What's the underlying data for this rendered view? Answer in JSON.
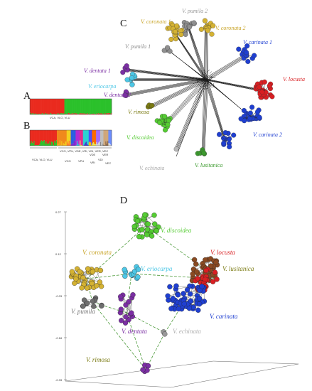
{
  "panels": {
    "a": "A",
    "b": "B",
    "c": "C",
    "d": "D"
  },
  "colors": {
    "coronata": "#d4b233",
    "pumila": "#8f8f8f",
    "carinata": "#1f3fd1",
    "locusta": "#d81f22",
    "dentata": "#7b2fa3",
    "eriocarpa": "#4dc7e6",
    "rimosa": "#7a7a12",
    "discoidea": "#55cc33",
    "echinata": "#b8b8b8",
    "lusitanica": "#3c9a2e",
    "red": "#ea2a1e",
    "green": "#2bc12b"
  },
  "panelA": {
    "caption": "VCA, VLO, VLU"
  },
  "panelB": {
    "caption_left": "VCA, VLO, VLU",
    "caption_mid": "VCO, VPU, VDE, VRI, VDI, VER, VEC",
    "group_labels": [
      "VCO",
      "VPU",
      "VDE",
      "VRI",
      "VDI",
      "VER",
      "VEC"
    ]
  },
  "panelC": {
    "labels": {
      "pumila2": "V. pumila 2",
      "coronata1": "V. coronata 1",
      "coronata2": "V. coronata 2",
      "pumila1": "V. pumila 1",
      "carinata1": "V. carinata 1",
      "dentata1": "V. dentata 1",
      "eriocarpa": "V. eriocarpa",
      "dentata2": "V. dentata 2",
      "locusta": "V. locusta",
      "rimosa": "V. rimosa",
      "discoidea": "V. discoidea",
      "carinata2": "V. carinata 2",
      "echinata": "V. echinata",
      "lusitanica": "V. lusitanica"
    }
  },
  "panelD": {
    "labels": {
      "discoidea": "V. discoidea",
      "coronata": "V. coronata",
      "locusta": "V. locusta",
      "eriocarpa": "V. eriocarpa",
      "lusitanica": "V. lusitanica",
      "pumila": "V. pumila",
      "carinata": "V. carinata",
      "dentata": "V. dentata",
      "echinata": "V. echinata",
      "rimosa": "V. rimosa"
    },
    "axis_ticks": [
      "0.27",
      "0.12",
      "-0.03",
      "-0.18",
      "-0.33"
    ]
  }
}
